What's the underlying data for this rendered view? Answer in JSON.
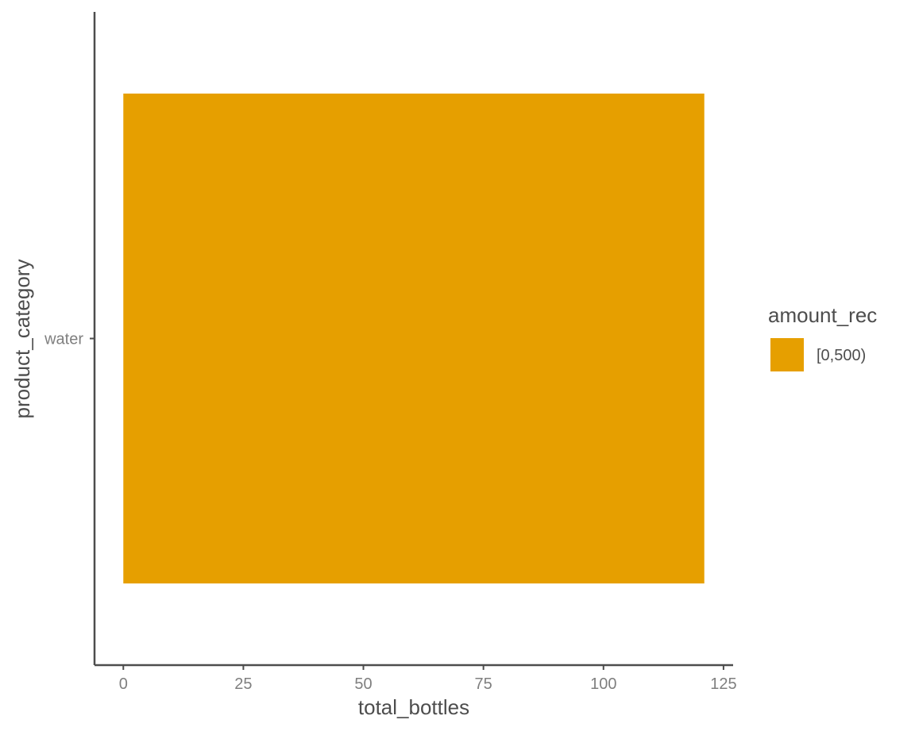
{
  "chart_data": {
    "type": "bar",
    "orientation": "horizontal",
    "categories": [
      "water"
    ],
    "series": [
      {
        "name": "[0,500)",
        "values": [
          121
        ],
        "color": "#E69F00"
      }
    ],
    "xlabel": "total_bottles",
    "ylabel": "product_category",
    "x_ticks": [
      0,
      25,
      50,
      75,
      100,
      125
    ],
    "xlim": [
      -6,
      127
    ],
    "legend": {
      "title": "amount_rec",
      "placement": "right",
      "entries": [
        {
          "label": "[0,500)",
          "color": "#E69F00"
        }
      ]
    },
    "grid": false
  }
}
